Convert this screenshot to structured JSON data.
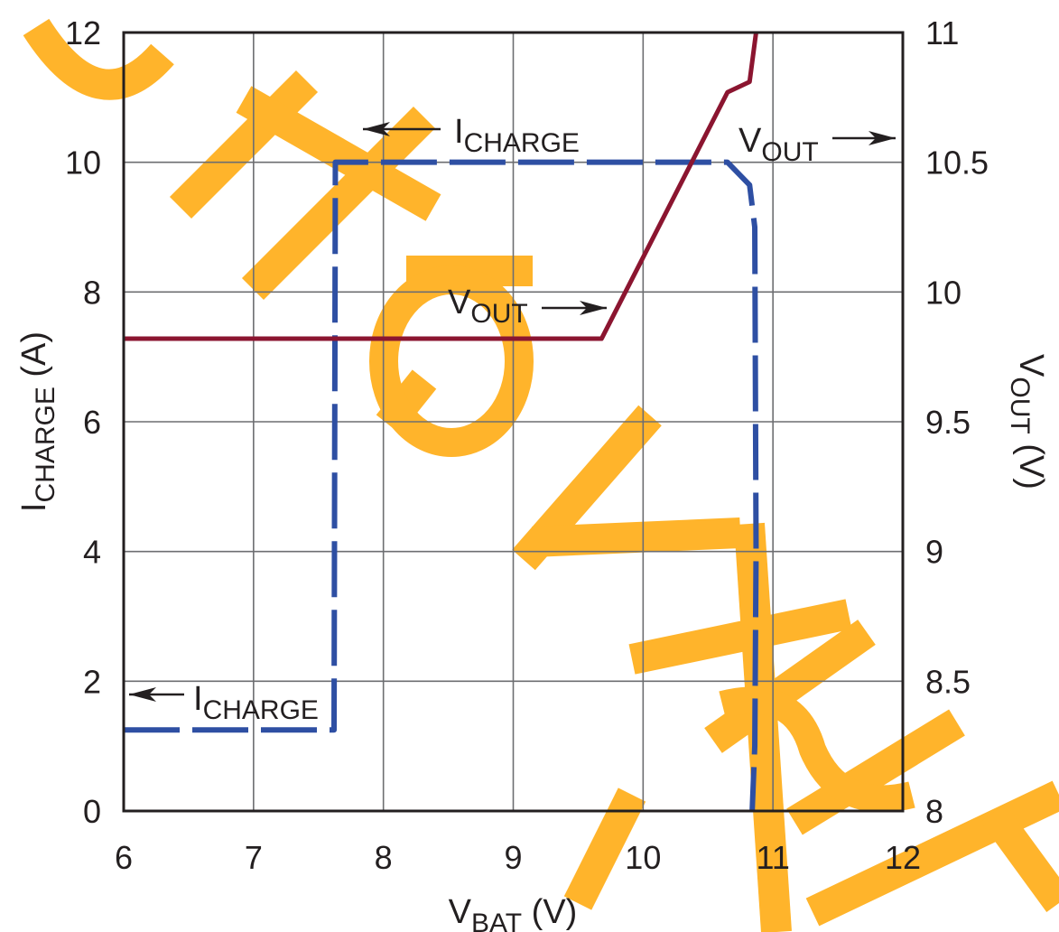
{
  "chart_data": {
    "type": "line",
    "x_axis": {
      "label_main": "V",
      "label_sub": "BAT",
      "label_unit": " (V)",
      "range": [
        6,
        12
      ],
      "ticks": [
        "6",
        "7",
        "8",
        "9",
        "10",
        "11",
        "12"
      ]
    },
    "y_axis_left": {
      "label_main": "I",
      "label_sub": "CHARGE",
      "label_unit": " (A)",
      "range": [
        0,
        12
      ],
      "ticks": [
        "0",
        "2",
        "4",
        "6",
        "8",
        "10",
        "12"
      ]
    },
    "y_axis_right": {
      "label_main": "V",
      "label_sub": "OUT",
      "label_unit": " (V)",
      "range": [
        8,
        11
      ],
      "ticks": [
        "8",
        "8.5",
        "9",
        "9.5",
        "10",
        "10.5",
        "11"
      ]
    },
    "grid": true,
    "series": [
      {
        "key": "icharge",
        "axis": "left",
        "color": "#2e4fa3",
        "dash": "dashed",
        "x": [
          6.0,
          7.62,
          7.63,
          10.65,
          10.82,
          10.86,
          10.87,
          10.86,
          10.84
        ],
        "y": [
          1.25,
          1.25,
          10.0,
          10.0,
          9.65,
          9.0,
          4.0,
          1.0,
          0.0
        ]
      },
      {
        "key": "vout",
        "axis": "right",
        "color": "#8b1530",
        "dash": "solid",
        "x": [
          6.0,
          9.68,
          10.65,
          10.82,
          10.87
        ],
        "y": [
          9.82,
          9.82,
          10.77,
          10.81,
          11.0
        ]
      }
    ],
    "annotations": [
      {
        "main": "I",
        "sub": "CHARGE",
        "arrow": "left"
      },
      {
        "main": "V",
        "sub": "OUT",
        "arrow": "right"
      },
      {
        "main": "V",
        "sub": "OUT",
        "arrow": "right"
      },
      {
        "main": "I",
        "sub": "CHARGE",
        "arrow": "left"
      }
    ]
  },
  "watermark": {
    "text": "CHIPSHKYHY",
    "color": "#ffb020"
  }
}
